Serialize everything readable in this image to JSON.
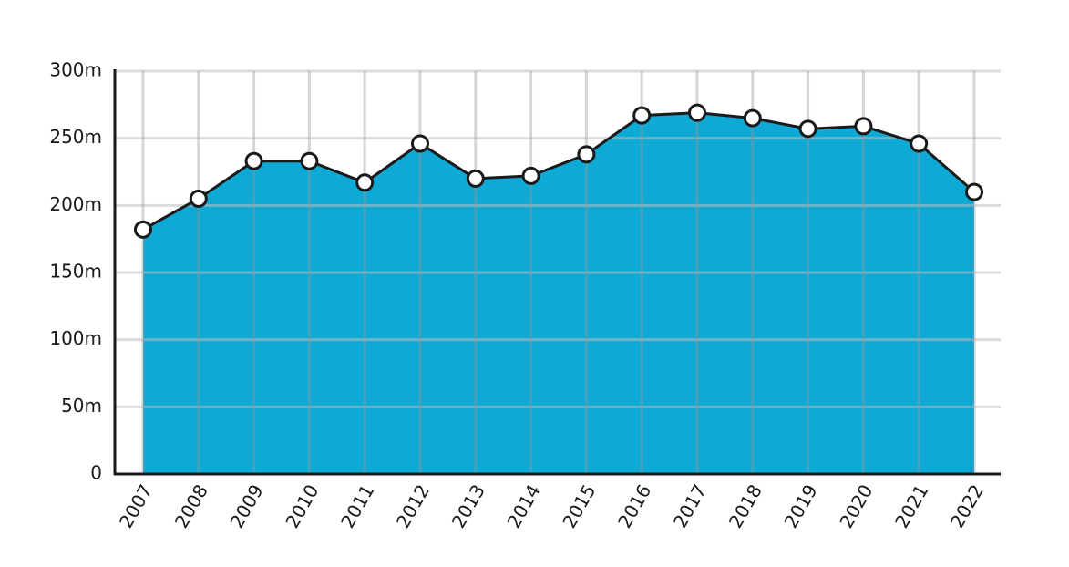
{
  "chart_data": {
    "type": "area",
    "categories": [
      "2007",
      "2008",
      "2009",
      "2010",
      "2011",
      "2012",
      "2013",
      "2014",
      "2015",
      "2016",
      "2017",
      "2018",
      "2019",
      "2020",
      "2021",
      "2022"
    ],
    "values": [
      182,
      205,
      233,
      233,
      217,
      246,
      220,
      222,
      238,
      267,
      269,
      265,
      257,
      259,
      246,
      210
    ],
    "color": "#0fa9d6",
    "ylim": [
      0,
      300
    ],
    "yticks": [
      0,
      {
        "value": 50,
        "label": "50m"
      },
      {
        "value": 100,
        "label": "100m"
      },
      {
        "value": 150,
        "label": "150m"
      },
      {
        "value": 200,
        "label": "200m"
      },
      {
        "value": 250,
        "label": "250m"
      },
      {
        "value": 300,
        "label": "300m"
      }
    ],
    "grid": true
  }
}
